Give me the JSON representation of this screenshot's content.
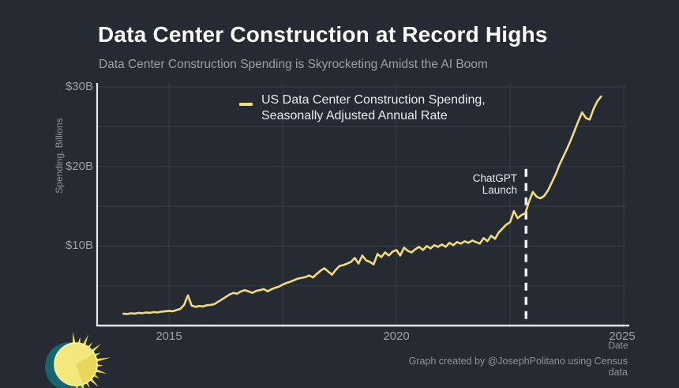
{
  "header": {
    "title": "Data Center Construction at Record Highs",
    "subtitle": "Data Center Construction Spending is Skyrocketing Amidst the AI Boom"
  },
  "colors": {
    "background": "#262a32",
    "line_yellow": "#f1dd7c",
    "grid": "#353b44",
    "axis_spine": "#e4e8ec",
    "dashed_line": "#eef1f3",
    "title_text": "#fdfdfe",
    "muted_text": "#9aa1a9",
    "logo_teal": "#15666d",
    "logo_gold": "#eed94f",
    "logo_sun_fill": "#f4e87d",
    "logo_wedge": "#e9d75c",
    "logo_ring": "#f8f2b0"
  },
  "footer": {
    "attribution": "Graph created by @JosephPolitano using Census data"
  },
  "chart_data": {
    "type": "line",
    "title": "Data Center Construction at Record Highs",
    "subtitle": "Data Center Construction Spending is Skyrocketing Amidst the AI Boom",
    "xlabel": "Date",
    "ylabel": "Spending, Billions",
    "xlim": [
      2013.42,
      2025.05
    ],
    "ylim": [
      0,
      30.5
    ],
    "x_tick_labels": [
      "2015",
      "2020",
      "2025"
    ],
    "x_tick_values": [
      2015,
      2020,
      2025
    ],
    "y_tick_labels": [
      "$30B",
      "$20B",
      "$10B"
    ],
    "y_tick_values": [
      30,
      20,
      10
    ],
    "grid_x": [
      2015,
      2017.5,
      2020,
      2022.5,
      2025
    ],
    "grid_y": [
      5,
      10,
      15,
      20,
      25,
      30
    ],
    "grid_on": true,
    "legend": {
      "position": "upper-left-inside",
      "line1": "US Data Center Construction Spending,",
      "line2": "Seasonally Adjusted Annual Rate"
    },
    "annotations": [
      {
        "type": "dashed-vline",
        "x": 2022.85,
        "y_top_value": 19.7,
        "label_line1": "ChatGPT",
        "label_line2": "Launch"
      }
    ],
    "series": [
      {
        "name": "US Data Center Construction Spending, Seasonally Adjusted Annual Rate",
        "unit": "billions of USD",
        "x_start": 2014.0,
        "x_interval": "monthly",
        "values": [
          1.5,
          1.45,
          1.55,
          1.5,
          1.6,
          1.55,
          1.65,
          1.6,
          1.7,
          1.65,
          1.75,
          1.8,
          1.85,
          1.8,
          1.95,
          2.1,
          2.6,
          3.8,
          2.5,
          2.35,
          2.45,
          2.4,
          2.55,
          2.6,
          2.7,
          3.0,
          3.3,
          3.6,
          3.9,
          4.1,
          4.0,
          4.3,
          4.45,
          4.3,
          4.1,
          4.35,
          4.45,
          4.6,
          4.3,
          4.55,
          4.75,
          4.9,
          5.15,
          5.35,
          5.5,
          5.7,
          5.9,
          6.0,
          6.1,
          6.3,
          6.05,
          6.5,
          6.9,
          7.2,
          6.8,
          6.4,
          7.0,
          7.5,
          7.6,
          7.8,
          8.0,
          8.5,
          7.8,
          8.8,
          8.2,
          8.0,
          7.7,
          9.0,
          8.6,
          9.2,
          8.8,
          9.3,
          9.5,
          8.8,
          9.8,
          9.4,
          9.2,
          9.6,
          9.9,
          9.5,
          10.0,
          9.7,
          10.1,
          9.9,
          10.2,
          9.9,
          10.4,
          10.1,
          10.5,
          10.3,
          10.6,
          10.4,
          10.7,
          10.5,
          10.3,
          11.0,
          10.6,
          11.3,
          10.9,
          11.7,
          12.2,
          12.7,
          13.0,
          14.4,
          13.5,
          13.9,
          14.1,
          15.6,
          16.8,
          16.2,
          16.0,
          16.3,
          17.0,
          18.0,
          19.0,
          20.2,
          21.2,
          22.2,
          23.3,
          24.5,
          25.7,
          26.8,
          26.1,
          25.9,
          27.2,
          28.2,
          28.8
        ]
      }
    ]
  }
}
